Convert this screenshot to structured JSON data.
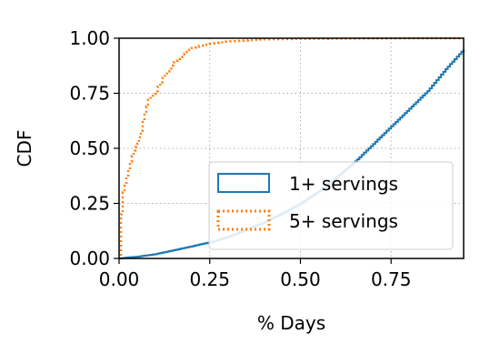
{
  "chart_data": {
    "type": "line",
    "xlabel": "% Days",
    "ylabel": "CDF",
    "xlim": [
      0.0,
      0.95
    ],
    "ylim": [
      0.0,
      1.0
    ],
    "xticks": [
      "0.00",
      "0.25",
      "0.50",
      "0.75"
    ],
    "yticks": [
      "0.00",
      "0.25",
      "0.50",
      "0.75",
      "1.00"
    ],
    "grid": true,
    "legend_position": "lower-right",
    "series": [
      {
        "name": "1+ servings",
        "color": "#1f77b4",
        "style": "solid-step",
        "x": [
          0.0,
          0.02,
          0.05,
          0.08,
          0.1,
          0.12,
          0.15,
          0.18,
          0.2,
          0.22,
          0.25,
          0.3,
          0.35,
          0.4,
          0.45,
          0.5,
          0.55,
          0.6,
          0.65,
          0.7,
          0.75,
          0.8,
          0.85,
          0.9,
          0.95
        ],
        "y": [
          0.0,
          0.004,
          0.008,
          0.015,
          0.02,
          0.027,
          0.037,
          0.048,
          0.055,
          0.063,
          0.073,
          0.098,
          0.13,
          0.165,
          0.205,
          0.25,
          0.305,
          0.37,
          0.44,
          0.52,
          0.6,
          0.68,
          0.76,
          0.86,
          0.95
        ]
      },
      {
        "name": "5+ servings",
        "color": "#ff7f0e",
        "style": "dotted-step",
        "x": [
          0.0,
          0.005,
          0.01,
          0.02,
          0.03,
          0.04,
          0.05,
          0.06,
          0.07,
          0.08,
          0.1,
          0.12,
          0.15,
          0.18,
          0.2,
          0.22,
          0.25,
          0.3,
          0.35,
          0.4,
          0.5,
          0.6,
          0.7,
          0.8,
          0.9,
          0.95
        ],
        "y": [
          0.0,
          0.2,
          0.3,
          0.37,
          0.44,
          0.49,
          0.52,
          0.58,
          0.66,
          0.72,
          0.76,
          0.82,
          0.89,
          0.93,
          0.955,
          0.965,
          0.975,
          0.985,
          0.99,
          0.995,
          0.997,
          0.998,
          0.999,
          1.0,
          1.0,
          1.0
        ]
      }
    ]
  }
}
